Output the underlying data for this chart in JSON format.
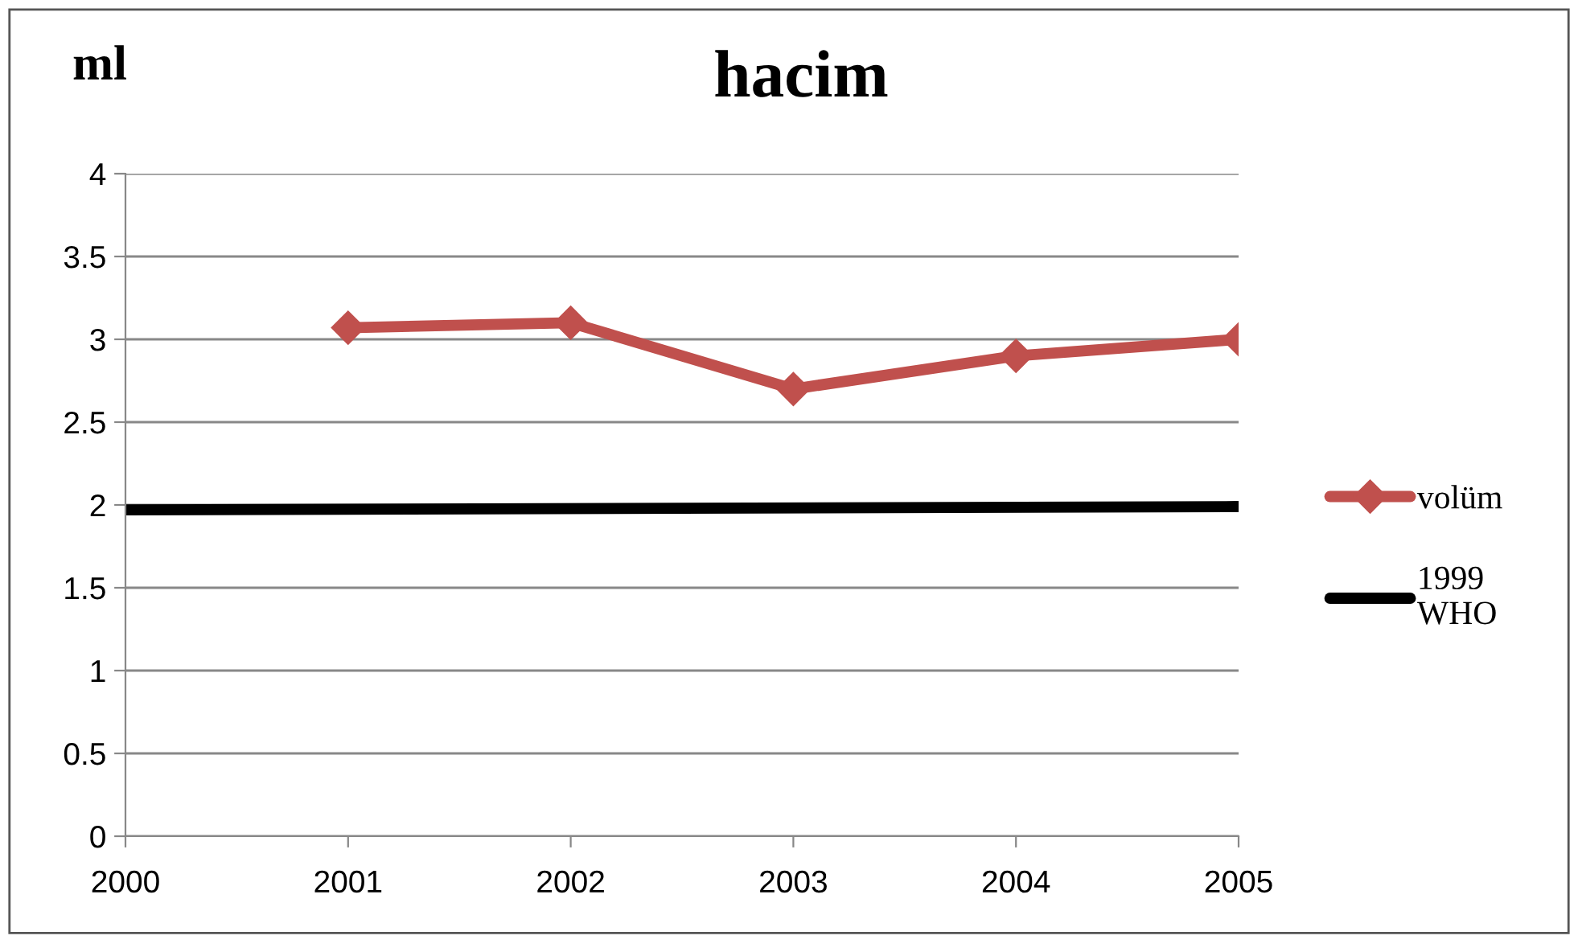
{
  "chart_data": {
    "type": "line",
    "title": "hacim",
    "ylabel": "ml",
    "series": [
      {
        "name": "volüm",
        "color": "#c0504d",
        "x": [
          2001,
          2002,
          2003,
          2004,
          2005
        ],
        "values": [
          3.07,
          3.1,
          2.7,
          2.9,
          3.0
        ],
        "marker": "diamond"
      },
      {
        "name": "1999 WHO",
        "color": "#000000",
        "x": [
          2000,
          2005
        ],
        "values": [
          1.97,
          1.99
        ],
        "marker": "none"
      }
    ],
    "xlim": [
      2000,
      2005
    ],
    "xticks": [
      2000,
      2001,
      2002,
      2003,
      2004,
      2005
    ],
    "ylim": [
      0,
      4
    ],
    "yticks": [
      0,
      0.5,
      1,
      1.5,
      2,
      2.5,
      3,
      3.5,
      4
    ],
    "grid": "y",
    "legend": "right",
    "line_style": "solid"
  }
}
